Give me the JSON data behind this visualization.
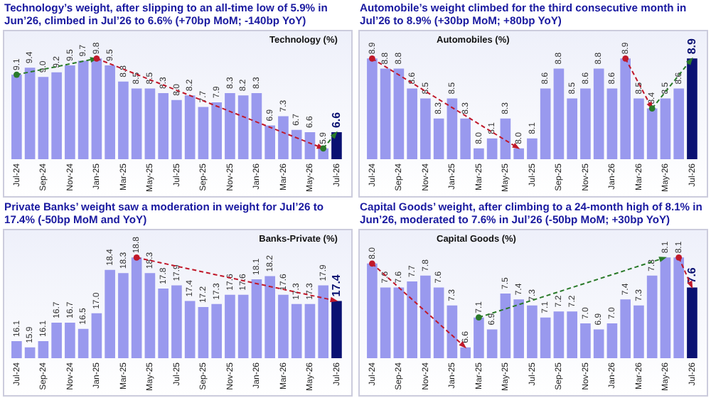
{
  "chart_data": [
    {
      "type": "bar",
      "title": "Technology’s weight, after slipping to an all-time low of 5.9% in Jun’26, climbed in Jul’26 to 6.6% (+70bp MoM; -140bp YoY)",
      "categories": [
        "Jul-24",
        null,
        "Sep-24",
        null,
        "Nov-24",
        null,
        "Jan-25",
        null,
        "Mar-25",
        null,
        "May-25",
        null,
        "Jul-25",
        null,
        "Sep-25",
        null,
        "Nov-25",
        null,
        "Jan-26",
        null,
        "Mar-26",
        null,
        "May-26",
        null,
        "Jul-26"
      ],
      "series": [
        {
          "name": "Technology (%)",
          "colors": [
            "#9999ee",
            "#9999ee",
            "#9999ee",
            "#9999ee",
            "#9999ee",
            "#9999ee",
            "#9999ee",
            "#9999ee",
            "#9999ee",
            "#9999ee",
            "#9999ee",
            "#9999ee",
            "#9999ee",
            "#9999ee",
            "#9999ee",
            "#9999ee",
            "#9999ee",
            "#9999ee",
            "#9999ee",
            "#9999ee",
            "#9999ee",
            "#9999ee",
            "#9999ee",
            "#9999ee",
            "#0a1172"
          ],
          "values": [
            9.1,
            9.4,
            9.0,
            9.2,
            9.5,
            9.7,
            9.8,
            9.5,
            8.8,
            8.5,
            8.5,
            8.3,
            8.0,
            8.2,
            7.7,
            7.9,
            8.3,
            8.2,
            8.3,
            6.9,
            7.3,
            6.7,
            6.6,
            5.9,
            6.6
          ],
          "value_labels": [
            "9.1",
            "9.4",
            "9.0",
            "9.2",
            "9.5",
            "9.7",
            "9.8",
            "9.5",
            "8.8",
            "8.5",
            "8.5",
            "8.3",
            "8.0",
            "8.2",
            "7.7",
            "7.9",
            "8.3",
            "8.2",
            "8.3",
            "6.9",
            "7.3",
            "6.7",
            "6.6",
            "5.9",
            "6.6"
          ]
        }
      ],
      "tick_labels": "x",
      "legend": "top right",
      "grid": false
    },
    {
      "type": "bar",
      "title": "Automobile’s weight climbed for the third consecutive month in Jul’26 to 8.9% (+30bp MoM; +80bp YoY)",
      "categories": [
        "Jul-24",
        null,
        "Sep-24",
        null,
        "Nov-24",
        null,
        "Jan-25",
        null,
        "Mar-25",
        null,
        "May-25",
        null,
        "Jul-25",
        null,
        "Sep-25",
        null,
        "Nov-25",
        null,
        "Jan-26",
        null,
        "Mar-26",
        null,
        "May-26",
        null,
        "Jul-26"
      ],
      "series": [
        {
          "name": "Automobiles (%)",
          "colors": [
            "#9999ee",
            "#9999ee",
            "#9999ee",
            "#9999ee",
            "#9999ee",
            "#9999ee",
            "#9999ee",
            "#9999ee",
            "#9999ee",
            "#9999ee",
            "#9999ee",
            "#9999ee",
            "#9999ee",
            "#9999ee",
            "#9999ee",
            "#9999ee",
            "#9999ee",
            "#9999ee",
            "#9999ee",
            "#9999ee",
            "#9999ee",
            "#9999ee",
            "#9999ee",
            "#9999ee",
            "#0a1172"
          ],
          "values": [
            8.9,
            8.8,
            8.8,
            8.6,
            8.5,
            8.3,
            8.5,
            8.3,
            8.0,
            8.1,
            8.3,
            8.0,
            8.1,
            8.6,
            8.8,
            8.5,
            8.6,
            8.8,
            8.6,
            8.9,
            8.5,
            8.4,
            8.5,
            8.6,
            8.9
          ],
          "value_labels": [
            "8.9",
            "8.8",
            "8.8",
            "8.6",
            "8.5",
            "8.3",
            "8.5",
            "8.3",
            "8.0",
            "8.1",
            "8.3",
            "8.0",
            "8.1",
            "8.6",
            "8.8",
            "8.5",
            "8.6",
            "8.8",
            "8.6",
            "8.9",
            "8.5",
            "8.4",
            "8.5",
            "8.6",
            "8.9"
          ]
        }
      ],
      "tick_labels": "x",
      "legend": "top left",
      "grid": false
    },
    {
      "type": "bar",
      "title": "Private Banks’ weight saw a moderation in weight for Jul’26 to 17.4% (-50bp MoM and YoY)",
      "categories": [
        "Jul-24",
        null,
        "Sep-24",
        null,
        "Nov-24",
        null,
        "Jan-25",
        null,
        "Mar-25",
        null,
        "May-25",
        null,
        "Jul-25",
        null,
        "Sep-25",
        null,
        "Nov-25",
        null,
        "Jan-26",
        null,
        "Mar-26",
        null,
        "May-26",
        null,
        "Jul-26"
      ],
      "series": [
        {
          "name": "Banks-Private (%)",
          "colors": [
            "#9999ee",
            "#9999ee",
            "#9999ee",
            "#9999ee",
            "#9999ee",
            "#9999ee",
            "#9999ee",
            "#9999ee",
            "#9999ee",
            "#9999ee",
            "#9999ee",
            "#9999ee",
            "#9999ee",
            "#9999ee",
            "#9999ee",
            "#9999ee",
            "#9999ee",
            "#9999ee",
            "#9999ee",
            "#9999ee",
            "#9999ee",
            "#9999ee",
            "#9999ee",
            "#9999ee",
            "#0a1172"
          ],
          "values": [
            16.1,
            15.9,
            16.1,
            16.7,
            16.7,
            16.5,
            17.0,
            18.4,
            18.3,
            18.8,
            18.3,
            17.8,
            17.9,
            17.4,
            17.2,
            17.3,
            17.6,
            17.6,
            18.1,
            18.2,
            17.6,
            17.3,
            17.3,
            17.9,
            17.4
          ],
          "value_labels": [
            "16.1",
            "15.9",
            "16.1",
            "16.7",
            "16.7",
            "16.5",
            "17.0",
            "18.4",
            "18.3",
            "18.8",
            "18.3",
            "17.8",
            "17.9",
            "17.4",
            "17.2",
            "17.3",
            "17.6",
            "17.6",
            "18.1",
            "18.2",
            "17.6",
            "17.3",
            "17.3",
            "17.9",
            "17.4"
          ]
        }
      ],
      "tick_labels": "x",
      "legend": "top right",
      "grid": false
    },
    {
      "type": "bar",
      "title": "Capital Goods’ weight, after climbing to a 24-month high of 8.1% in Jun’26, moderated to 7.6% in Jul’26 (-50bp MoM; +30bp YoY)",
      "categories": [
        "Jul-24",
        null,
        "Sep-24",
        null,
        "Nov-24",
        null,
        "Jan-25",
        null,
        "Mar-25",
        null,
        "May-25",
        null,
        "Jul-25",
        null,
        "Sep-25",
        null,
        "Nov-25",
        null,
        "Jan-26",
        null,
        "Mar-26",
        null,
        "May-26",
        null,
        "Jul-26"
      ],
      "series": [
        {
          "name": "Capital Goods (%)",
          "colors": [
            "#9999ee",
            "#9999ee",
            "#9999ee",
            "#9999ee",
            "#9999ee",
            "#9999ee",
            "#9999ee",
            "#9999ee",
            "#9999ee",
            "#9999ee",
            "#9999ee",
            "#9999ee",
            "#9999ee",
            "#9999ee",
            "#9999ee",
            "#9999ee",
            "#9999ee",
            "#9999ee",
            "#9999ee",
            "#9999ee",
            "#9999ee",
            "#9999ee",
            "#9999ee",
            "#9999ee",
            "#0a1172"
          ],
          "values": [
            8.0,
            7.6,
            7.6,
            7.7,
            7.8,
            7.6,
            7.3,
            6.6,
            7.1,
            6.9,
            7.5,
            7.4,
            7.3,
            7.1,
            7.2,
            7.2,
            7.0,
            6.9,
            7.0,
            7.4,
            7.3,
            7.8,
            8.1,
            8.1,
            7.6
          ],
          "value_labels": [
            "8.0",
            "7.6",
            "7.6",
            "7.7",
            "7.8",
            "7.6",
            "7.3",
            "6.6",
            "7.1",
            "6.9",
            "7.5",
            "7.4",
            "7.3",
            "7.1",
            "7.2",
            "7.2",
            "7.0",
            "6.9",
            "7.0",
            "7.4",
            "7.3",
            "7.8",
            "8.1",
            "8.1",
            "7.6"
          ]
        }
      ],
      "tick_labels": "x",
      "legend": "top left",
      "grid": false
    }
  ]
}
